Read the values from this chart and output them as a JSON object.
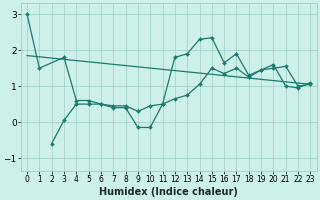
{
  "line1_x": [
    0,
    1,
    3,
    4,
    5,
    6,
    7,
    8,
    9,
    10,
    11,
    12,
    13,
    14,
    15,
    16,
    17,
    18,
    19,
    20,
    21,
    22,
    23
  ],
  "line1_y": [
    3.0,
    1.5,
    1.8,
    0.6,
    0.6,
    0.5,
    0.4,
    0.4,
    -0.15,
    -0.15,
    0.5,
    1.8,
    1.9,
    2.3,
    2.35,
    1.65,
    1.9,
    1.3,
    1.45,
    1.6,
    1.0,
    0.95,
    1.1
  ],
  "line2_x": [
    2,
    3,
    4,
    5,
    6,
    7,
    8,
    9,
    10,
    11,
    12,
    13,
    14,
    15,
    16,
    17,
    18,
    19,
    20,
    21,
    22,
    23
  ],
  "line2_y": [
    -0.6,
    0.05,
    0.5,
    0.5,
    0.5,
    0.45,
    0.45,
    0.3,
    0.45,
    0.5,
    0.65,
    0.75,
    1.05,
    1.5,
    1.35,
    1.5,
    1.25,
    1.45,
    1.5,
    1.55,
    1.0,
    1.05
  ],
  "trend_x": [
    0,
    23
  ],
  "trend_y": [
    1.85,
    1.05
  ],
  "line_color": "#1a7a6e",
  "bg_color": "#cef0ea",
  "grid_color": "#9ecec8",
  "xlabel": "Humidex (Indice chaleur)",
  "xlabel_fontsize": 7,
  "xlim": [
    -0.5,
    23.5
  ],
  "ylim": [
    -1.35,
    3.3
  ],
  "yticks": [
    -1,
    0,
    1,
    2,
    3
  ],
  "xticks": [
    0,
    1,
    2,
    3,
    4,
    5,
    6,
    7,
    8,
    9,
    10,
    11,
    12,
    13,
    14,
    15,
    16,
    17,
    18,
    19,
    20,
    21,
    22,
    23
  ]
}
